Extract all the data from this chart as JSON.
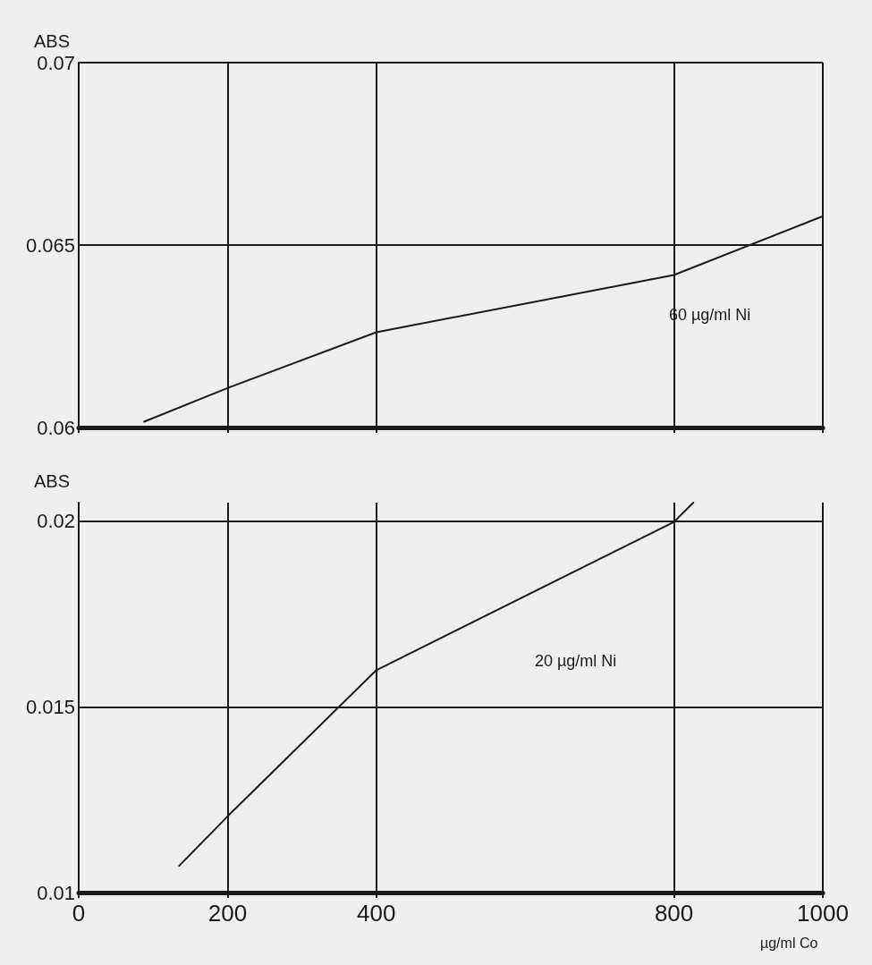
{
  "chart_data": [
    {
      "type": "line",
      "ylabel": "ABS",
      "x": [
        88,
        200,
        400,
        800,
        1000
      ],
      "series": [
        {
          "name": "60 µg/ml Ni",
          "color": "#1a1a1a",
          "values": [
            0.06016,
            0.06108,
            0.06261,
            0.06418,
            0.06579
          ]
        }
      ],
      "xlim": [
        0,
        1000
      ],
      "xticks": [
        0,
        200,
        400,
        800,
        1000
      ],
      "ylim": [
        0.06,
        0.07
      ],
      "yticks": [
        0.06,
        0.065,
        0.07
      ],
      "grid": true,
      "tick_labels": "y",
      "marker": "none",
      "line_style": "solid"
    },
    {
      "type": "line",
      "ylabel": "ABS",
      "xlabel": "µg/ml Co",
      "x": [
        135,
        200,
        400,
        800,
        826
      ],
      "series": [
        {
          "name": "20 µg/ml Ni",
          "color": "#1a1a1a",
          "values": [
            0.01072,
            0.01205,
            0.01599,
            0.01998,
            0.0205
          ]
        }
      ],
      "xlim": [
        0,
        1000
      ],
      "xticks": [
        0,
        200,
        400,
        800,
        1000
      ],
      "ylim": [
        0.01,
        0.0205
      ],
      "yticks": [
        0.01,
        0.015,
        0.02
      ],
      "grid": true,
      "marker": "none",
      "line_style": "solid"
    }
  ]
}
